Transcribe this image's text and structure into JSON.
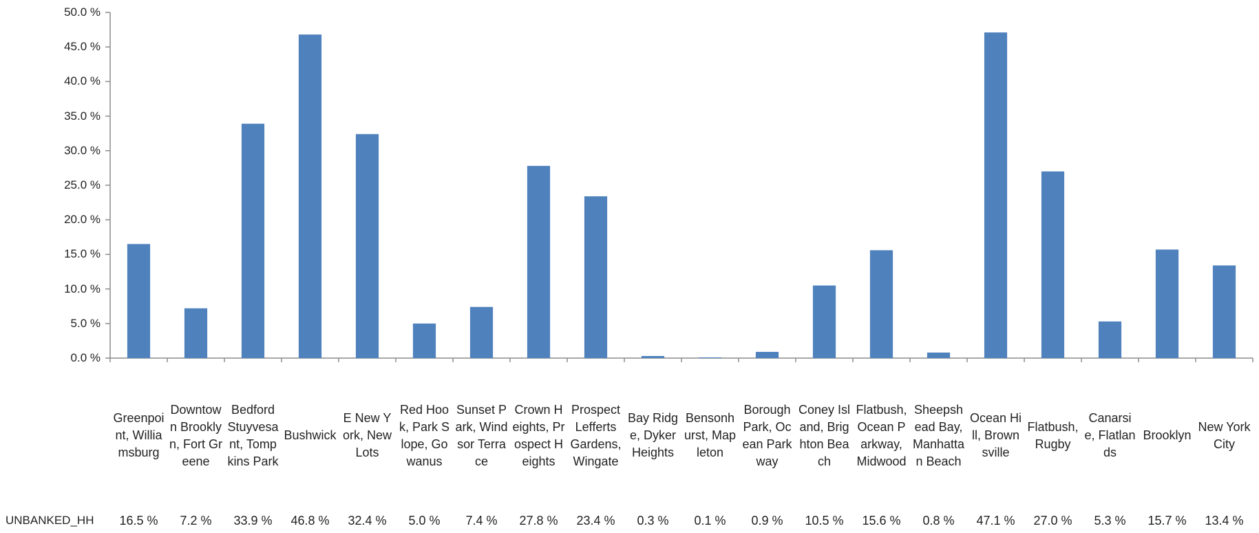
{
  "chart_data": {
    "type": "bar",
    "categories": [
      "Greenpoint, Williamsburg",
      "Downtown Brooklyn, Fort Greene",
      "Bedford Stuyvesant, Tompkins Park",
      "Bushwick",
      "E New York, New Lots",
      "Red Hook, Park Slope, Gowanus",
      "Sunset Park, Windsor Terrace",
      "Crown Heights, Prospect Heights",
      "Prospect Lefferts Gardens, Wingate",
      "Bay Ridge, Dyker Heights",
      "Bensonhurst, Mapleton",
      "Borough Park, Ocean Parkway",
      "Coney Island, Brighton Beach",
      "Flatbush, Ocean Parkway, Midwood",
      "Sheepshead Bay, Manhattan Beach",
      "Ocean Hill, Brownsville",
      "Flatbush, Rugby",
      "Canarsie, Flatlands",
      "Brooklyn",
      "New York City"
    ],
    "series": [
      {
        "name": "UNBANKED_HH",
        "values": [
          16.5,
          7.2,
          33.9,
          46.8,
          32.4,
          5.0,
          7.4,
          27.8,
          23.4,
          0.3,
          0.1,
          0.9,
          10.5,
          15.6,
          0.8,
          47.1,
          27.0,
          5.3,
          15.7,
          13.4
        ],
        "labels": [
          "16.5 %",
          "7.2 %",
          "33.9 %",
          "46.8 %",
          "32.4 %",
          "5.0 %",
          "7.4 %",
          "27.8 %",
          "23.4 %",
          "0.3 %",
          "0.1 %",
          "0.9 %",
          "10.5 %",
          "15.6 %",
          "0.8 %",
          "47.1 %",
          "27.0 %",
          "5.3 %",
          "15.7 %",
          "13.4 %"
        ]
      }
    ],
    "yticks": [
      "0.0 %",
      "5.0 %",
      "10.0 %",
      "15.0 %",
      "20.0 %",
      "25.0 %",
      "30.0 %",
      "35.0 %",
      "40.0 %",
      "45.0 %",
      "50.0 %"
    ],
    "ylim": [
      0,
      50
    ],
    "title": "",
    "xlabel": "",
    "ylabel": "",
    "grid": false,
    "legend": "none",
    "data_table": true,
    "colors": {
      "bar": "#4F81BD",
      "axis": "#8C8C8C"
    }
  }
}
